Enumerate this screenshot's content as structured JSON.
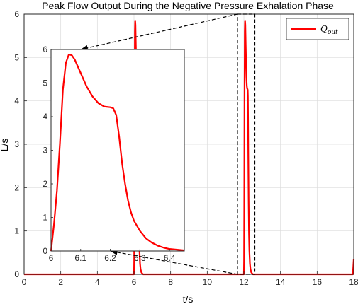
{
  "chart_data": {
    "type": "line",
    "title": "Peak Flow Output During the Negative Pressure Exhalation Phase",
    "xlabel": "t/s",
    "ylabel": "L/s",
    "xlim": [
      0,
      18
    ],
    "ylim": [
      0,
      6
    ],
    "xticks": [
      "0",
      "2",
      "4",
      "6",
      "8",
      "10",
      "12",
      "14",
      "16",
      "18"
    ],
    "yticks": [
      "0",
      "1",
      "2",
      "3",
      "4",
      "5",
      "6"
    ],
    "grid": true,
    "legend_position": "top-right",
    "series": [
      {
        "name_main": "Q",
        "name_sub": "out",
        "color": "#ff0000",
        "x": [
          0,
          6.0,
          6.01,
          6.02,
          6.035,
          6.05,
          6.065,
          6.08,
          6.1,
          6.12,
          6.14,
          6.16,
          6.18,
          6.2,
          6.21,
          6.22,
          6.23,
          6.24,
          6.26,
          6.28,
          6.3,
          6.33,
          6.36,
          6.4,
          6.45,
          6.5,
          12.0,
          12.01,
          12.02,
          12.035,
          12.05,
          12.065,
          12.08,
          12.1,
          12.12,
          12.14,
          12.16,
          12.18,
          12.2,
          12.21,
          12.22,
          12.23,
          12.24,
          12.26,
          12.28,
          12.3,
          12.33,
          12.36,
          12.4,
          12.45,
          12.5,
          17.95,
          18.0
        ],
        "y": [
          0,
          0,
          0.3,
          1.5,
          4.0,
          5.6,
          5.85,
          5.75,
          5.3,
          4.9,
          4.55,
          4.35,
          4.28,
          4.27,
          4.25,
          4.1,
          3.6,
          2.8,
          1.7,
          0.95,
          0.55,
          0.25,
          0.12,
          0.05,
          0.02,
          0,
          0,
          0.3,
          1.5,
          4.0,
          5.6,
          5.85,
          5.75,
          5.3,
          4.9,
          4.55,
          4.35,
          4.28,
          4.27,
          4.25,
          4.1,
          3.6,
          2.8,
          1.7,
          0.95,
          0.55,
          0.25,
          0.12,
          0.05,
          0.02,
          0,
          0,
          0.35
        ]
      }
    ],
    "inset": {
      "xlim": [
        6,
        6.45
      ],
      "ylim": [
        0,
        6
      ],
      "xticks": [
        "6",
        "6.1",
        "6.2",
        "6.3",
        "6.4"
      ],
      "yticks": [
        "0",
        "1",
        "2",
        "3",
        "4",
        "5",
        "6"
      ],
      "x": [
        6.0,
        6.005,
        6.01,
        6.02,
        6.03,
        6.04,
        6.05,
        6.06,
        6.07,
        6.08,
        6.09,
        6.1,
        6.12,
        6.14,
        6.16,
        6.18,
        6.2,
        6.21,
        6.22,
        6.23,
        6.24,
        6.25,
        6.26,
        6.27,
        6.28,
        6.3,
        6.32,
        6.34,
        6.36,
        6.38,
        6.4,
        6.45
      ],
      "y": [
        0,
        0.4,
        0.8,
        1.8,
        3.2,
        4.8,
        5.6,
        5.85,
        5.83,
        5.7,
        5.5,
        5.3,
        4.9,
        4.6,
        4.4,
        4.3,
        4.28,
        4.25,
        4.05,
        3.4,
        2.6,
        2.0,
        1.5,
        1.15,
        0.9,
        0.6,
        0.38,
        0.25,
        0.16,
        0.1,
        0.06,
        0.02
      ]
    },
    "zoom_box": {
      "x_range": [
        11.65,
        12.6
      ],
      "y_range": [
        0,
        6
      ]
    }
  }
}
